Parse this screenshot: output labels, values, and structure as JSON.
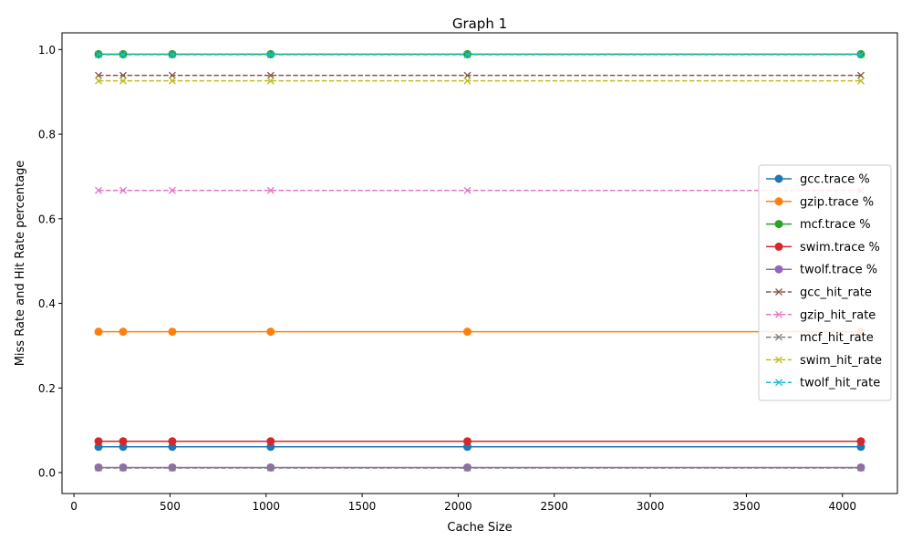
{
  "chart_data": {
    "type": "line",
    "title": "Graph 1",
    "xlabel": "Cache Size",
    "ylabel": "Miss Rate and Hit Rate percentage",
    "xlim": [
      -62,
      4286
    ],
    "ylim": [
      -0.0495,
      1.0395
    ],
    "x_ticks": [
      0,
      500,
      1000,
      1500,
      2000,
      2500,
      3000,
      3500,
      4000
    ],
    "y_ticks": [
      0.0,
      0.2,
      0.4,
      0.6,
      0.8,
      1.0
    ],
    "x_tick_labels": [
      "0",
      "500",
      "1000",
      "1500",
      "2000",
      "2500",
      "3000",
      "3500",
      "4000"
    ],
    "y_tick_labels": [
      "0.0",
      "0.2",
      "0.4",
      "0.6",
      "0.8",
      "1.0"
    ],
    "x": [
      128,
      256,
      512,
      1024,
      2048,
      4096
    ],
    "grid": false,
    "legend_position": "center-right",
    "series": [
      {
        "name": "gcc.trace %",
        "color": "#1f77b4",
        "dash": "solid",
        "marker": "circle",
        "values": [
          0.061,
          0.061,
          0.061,
          0.061,
          0.061,
          0.061
        ]
      },
      {
        "name": "gzip.trace %",
        "color": "#ff7f0e",
        "dash": "solid",
        "marker": "circle",
        "values": [
          0.333,
          0.333,
          0.333,
          0.333,
          0.333,
          0.333
        ]
      },
      {
        "name": "mcf.trace %",
        "color": "#2ca02c",
        "dash": "solid",
        "marker": "circle",
        "values": [
          0.989,
          0.989,
          0.989,
          0.989,
          0.989,
          0.989
        ]
      },
      {
        "name": "swim.trace %",
        "color": "#d62728",
        "dash": "solid",
        "marker": "circle",
        "values": [
          0.074,
          0.074,
          0.074,
          0.074,
          0.074,
          0.074
        ]
      },
      {
        "name": "twolf.trace %",
        "color": "#9467bd",
        "dash": "solid",
        "marker": "circle",
        "values": [
          0.012,
          0.012,
          0.012,
          0.012,
          0.012,
          0.012
        ]
      },
      {
        "name": "gcc_hit_rate",
        "color": "#8c564b",
        "dash": "dashed",
        "marker": "x",
        "values": [
          0.939,
          0.939,
          0.939,
          0.939,
          0.939,
          0.939
        ]
      },
      {
        "name": "gzip_hit_rate",
        "color": "#e377c2",
        "dash": "dashed",
        "marker": "x",
        "values": [
          0.667,
          0.667,
          0.667,
          0.667,
          0.667,
          0.667
        ]
      },
      {
        "name": "mcf_hit_rate",
        "color": "#7f7f7f",
        "dash": "dashed",
        "marker": "x",
        "values": [
          0.011,
          0.011,
          0.011,
          0.011,
          0.011,
          0.011
        ]
      },
      {
        "name": "swim_hit_rate",
        "color": "#bcbd22",
        "dash": "dashed",
        "marker": "x",
        "values": [
          0.926,
          0.926,
          0.926,
          0.926,
          0.926,
          0.926
        ]
      },
      {
        "name": "twolf_hit_rate",
        "color": "#17becf",
        "dash": "dashed",
        "marker": "x",
        "values": [
          0.988,
          0.988,
          0.988,
          0.988,
          0.988,
          0.988
        ]
      }
    ]
  }
}
